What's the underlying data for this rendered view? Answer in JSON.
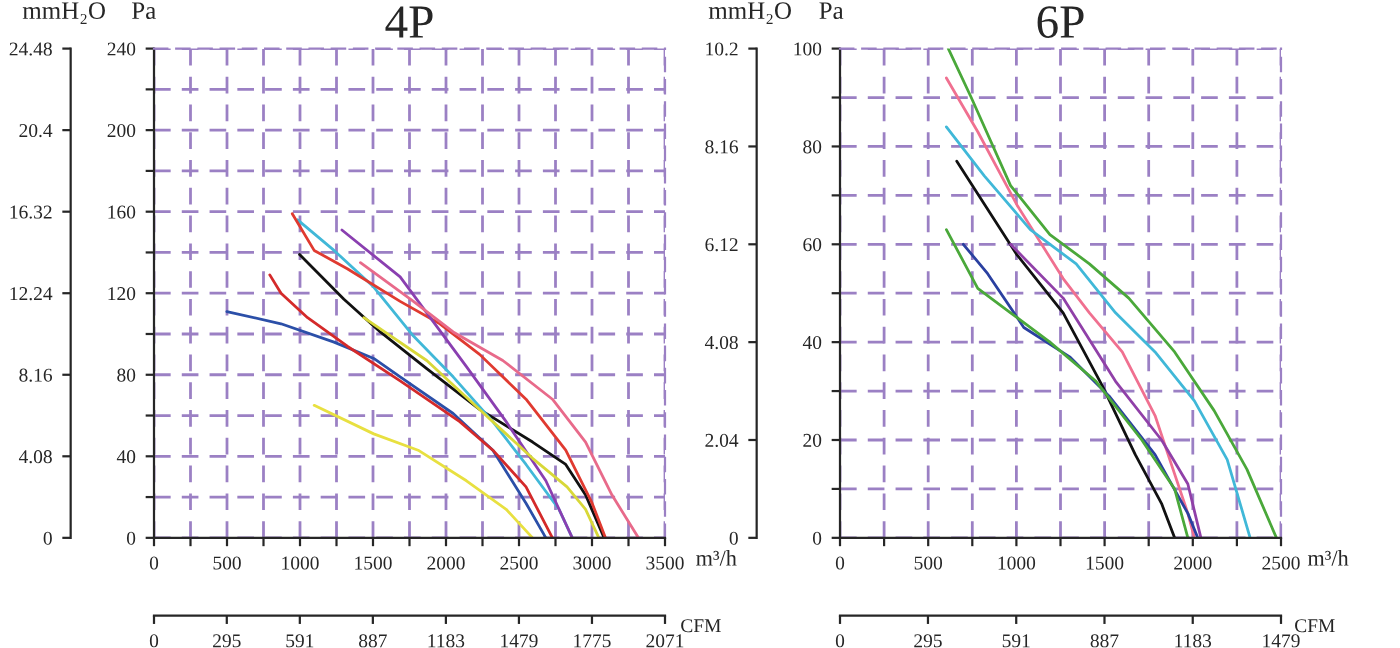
{
  "chart_data": [
    {
      "type": "line",
      "title": "4P",
      "xlabel": "m³/h",
      "ylabel": "Pa",
      "y2label": "mmH₂O",
      "x2label": "CFM",
      "xlim": [
        0,
        3500
      ],
      "xticks": [
        0,
        {
          "value": 250,
          "label": null
        },
        500,
        {
          "value": 750,
          "label": null
        },
        1000,
        {
          "value": 1250,
          "label": null
        },
        1500,
        {
          "value": 1750,
          "label": null
        },
        2000,
        {
          "value": 2250,
          "label": null
        },
        2500,
        {
          "value": 2750,
          "label": null
        },
        3000,
        {
          "value": 3250,
          "label": null
        },
        3500
      ],
      "ylim": [
        0,
        240
      ],
      "yticks": [
        0,
        {
          "value": 20,
          "label": null
        },
        40,
        {
          "value": 60,
          "label": null
        },
        80,
        {
          "value": 100,
          "label": null
        },
        120,
        {
          "value": 140,
          "label": null
        },
        160,
        {
          "value": 180,
          "label": null
        },
        200,
        {
          "value": 220,
          "label": null
        },
        240
      ],
      "y2lim": [
        0,
        24.48
      ],
      "y2ticks": [
        0,
        4.08,
        8.16,
        12.24,
        16.32,
        20.4,
        24.48
      ],
      "x2lim": [
        0,
        2071
      ],
      "x2ticks": [
        0,
        295,
        591,
        887,
        1183,
        1479,
        1775,
        2071
      ],
      "grid": true,
      "legend": false,
      "series": [
        {
          "color": "#2b4fa8",
          "x": [
            499,
            870,
            1233,
            1505,
            1686,
            2049,
            2321,
            2548,
            2684
          ],
          "values": [
            111,
            105,
            96,
            88,
            79,
            61,
            43,
            17,
            0
          ]
        },
        {
          "color": "#d42a2a",
          "x": [
            793,
            870,
            1052,
            1324,
            1686,
            2094,
            2321,
            2548,
            2729
          ],
          "values": [
            129,
            120,
            108,
            94,
            77,
            57,
            43,
            25,
            0
          ]
        },
        {
          "color": "#111111",
          "x": [
            997,
            1301,
            1550,
            1868,
            2230,
            2593,
            2820,
            2956,
            3083
          ],
          "values": [
            139,
            117,
            101,
            83,
            63,
            47,
            36,
            21,
            0
          ]
        },
        {
          "color": "#41b8d8",
          "x": [
            984,
            1233,
            1505,
            1777,
            2049,
            2321,
            2548,
            2774,
            2865
          ],
          "values": [
            156,
            141,
            123,
            99,
            79,
            57,
            36,
            14,
            0
          ]
        },
        {
          "color": "#e03a30",
          "x": [
            947,
            1097,
            1324,
            1686,
            1958,
            2230,
            2548,
            2820,
            3001,
            3092
          ],
          "values": [
            159,
            141,
            132,
            116,
            105,
            90,
            68,
            43,
            17,
            0
          ]
        },
        {
          "color": "#8a3fb0",
          "x": [
            1287,
            1686,
            2140,
            2412,
            2684,
            2865
          ],
          "values": [
            151,
            128,
            84,
            57,
            28,
            0
          ]
        },
        {
          "color": "#e86a8a",
          "x": [
            1414,
            1777,
            2049,
            2389,
            2729,
            2956,
            3137,
            3318
          ],
          "values": [
            135,
            116,
            101,
            87,
            68,
            47,
            21,
            0
          ]
        },
        {
          "color": "#e8e040",
          "x": [
            1097,
            1505,
            1809,
            2140,
            2412,
            2593
          ],
          "values": [
            65,
            51,
            43,
            28,
            14,
            0
          ]
        },
        {
          "color": "#d8d838",
          "x": [
            1437,
            1868,
            2230,
            2593,
            2829,
            2956,
            3047
          ],
          "values": [
            108,
            87,
            63,
            39,
            25,
            14,
            0
          ]
        }
      ]
    },
    {
      "type": "line",
      "title": "6P",
      "xlabel": "m³/h",
      "ylabel": "Pa",
      "y2label": "mmH₂O",
      "x2label": "CFM",
      "xlim": [
        0,
        2500
      ],
      "xticks": [
        0,
        {
          "value": 250,
          "label": null
        },
        500,
        {
          "value": 750,
          "label": null
        },
        1000,
        {
          "value": 1250,
          "label": null
        },
        1500,
        {
          "value": 1750,
          "label": null
        },
        2000,
        {
          "value": 2250,
          "label": null
        },
        2500
      ],
      "ylim": [
        0,
        100
      ],
      "yticks": [
        0,
        {
          "value": 10,
          "label": null
        },
        20,
        {
          "value": 30,
          "label": null
        },
        40,
        {
          "value": 50,
          "label": null
        },
        60,
        {
          "value": 70,
          "label": null
        },
        80,
        {
          "value": 90,
          "label": null
        },
        100
      ],
      "y2lim": [
        0,
        10.2
      ],
      "y2ticks": [
        0,
        2.04,
        4.08,
        6.12,
        8.16,
        10.2
      ],
      "x2lim": [
        0,
        1479
      ],
      "x2ticks": [
        0,
        295,
        591,
        887,
        1183,
        1479
      ],
      "grid": true,
      "legend": false,
      "series": [
        {
          "color": "#4aa83a",
          "x": [
            614,
            744,
            967,
            1190,
            1414,
            1637,
            1897,
            2121,
            2307,
            2474
          ],
          "values": [
            100,
            90,
            72,
            62,
            56,
            49,
            38,
            26,
            14,
            0
          ]
        },
        {
          "color": "#f07090",
          "x": [
            603,
            781,
            1004,
            1265,
            1414,
            1600,
            1786,
            1860,
            1972,
            2009
          ],
          "values": [
            94,
            83,
            68,
            53,
            46,
            38,
            25,
            17,
            5,
            0
          ]
        },
        {
          "color": "#40b8d8",
          "x": [
            603,
            818,
            1079,
            1339,
            1562,
            1786,
            2009,
            2195,
            2325
          ],
          "values": [
            84,
            74,
            63,
            56,
            46,
            38,
            28,
            16,
            0
          ]
        },
        {
          "color": "#111111",
          "x": [
            662,
            1000,
            1265,
            1488,
            1674,
            1823,
            1897
          ],
          "values": [
            77,
            58,
            46,
            31,
            17,
            7,
            0
          ]
        },
        {
          "color": "#9040a8",
          "x": [
            967,
            1265,
            1562,
            1823,
            1972,
            2046
          ],
          "values": [
            60,
            49,
            32,
            20,
            11,
            0
          ]
        },
        {
          "color": "#2a40a0",
          "x": [
            699,
            837,
            1042,
            1302,
            1525,
            1786,
            1972,
            2028
          ],
          "values": [
            60,
            54,
            43,
            37,
            29,
            17,
            5,
            0
          ]
        },
        {
          "color": "#4aa83a",
          "x": [
            603,
            781,
            967,
            1190,
            1451,
            1711,
            1897,
            1972
          ],
          "values": [
            63,
            51,
            46,
            40,
            32,
            20,
            10,
            0
          ]
        }
      ]
    }
  ]
}
